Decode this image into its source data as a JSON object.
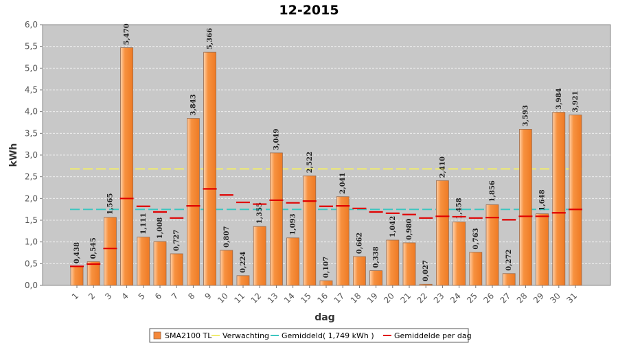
{
  "chart_data": {
    "type": "bar",
    "title": "12-2015",
    "xlabel": "dag",
    "ylabel": "kWh",
    "ylim": [
      0,
      6
    ],
    "yticks": [
      "0,0",
      "0,5",
      "1,0",
      "1,5",
      "2,0",
      "2,5",
      "3,0",
      "3,5",
      "4,0",
      "4,5",
      "5,0",
      "5,5",
      "6,0"
    ],
    "grid": true,
    "categories": [
      "1",
      "2",
      "3",
      "4",
      "5",
      "6",
      "7",
      "8",
      "9",
      "10",
      "11",
      "12",
      "13",
      "14",
      "15",
      "16",
      "17",
      "18",
      "19",
      "20",
      "21",
      "22",
      "23",
      "24",
      "25",
      "26",
      "27",
      "28",
      "29",
      "30",
      "31"
    ],
    "series": [
      {
        "name": "SMA2100 TL",
        "type": "bar",
        "color": "#f5883a",
        "values": [
          0.438,
          0.545,
          1.565,
          5.47,
          1.111,
          1.008,
          0.727,
          3.843,
          5.366,
          0.807,
          0.224,
          1.355,
          3.049,
          1.093,
          2.522,
          0.107,
          2.041,
          0.662,
          0.338,
          1.042,
          0.98,
          0.027,
          2.41,
          1.458,
          0.763,
          1.856,
          0.272,
          3.593,
          1.648,
          3.984,
          3.921
        ],
        "value_labels": [
          "0,438",
          "0,545",
          "1,565",
          "5,470",
          "1,111",
          "1,008",
          "0,727",
          "3,843",
          "5,366",
          "0,807",
          "0,224",
          "1,355",
          "3,049",
          "1,093",
          "2,522",
          "0,107",
          "2,041",
          "0,662",
          "0,338",
          "1,042",
          "0,980",
          "0,027",
          "2,410",
          "1,458",
          "0,763",
          "1,856",
          "0,272",
          "3,593",
          "1,648",
          "3,984",
          "3,921"
        ]
      },
      {
        "name": "Verwachting",
        "type": "line",
        "color": "#f0ec70",
        "value": 2.68
      },
      {
        "name": "Gemiddeld( 1,749 kWh )",
        "type": "line",
        "color": "#3ec6c0",
        "value": 1.749
      },
      {
        "name": "Gemiddelde per dag",
        "type": "marker",
        "color": "#e00000",
        "values": [
          0.438,
          0.49,
          0.85,
          2.0,
          1.82,
          1.69,
          1.55,
          1.83,
          2.22,
          2.08,
          1.91,
          1.87,
          1.96,
          1.9,
          1.94,
          1.82,
          1.83,
          1.77,
          1.69,
          1.66,
          1.63,
          1.55,
          1.59,
          1.58,
          1.55,
          1.56,
          1.51,
          1.59,
          1.59,
          1.67,
          1.749
        ]
      }
    ],
    "legend_position": "bottom"
  }
}
